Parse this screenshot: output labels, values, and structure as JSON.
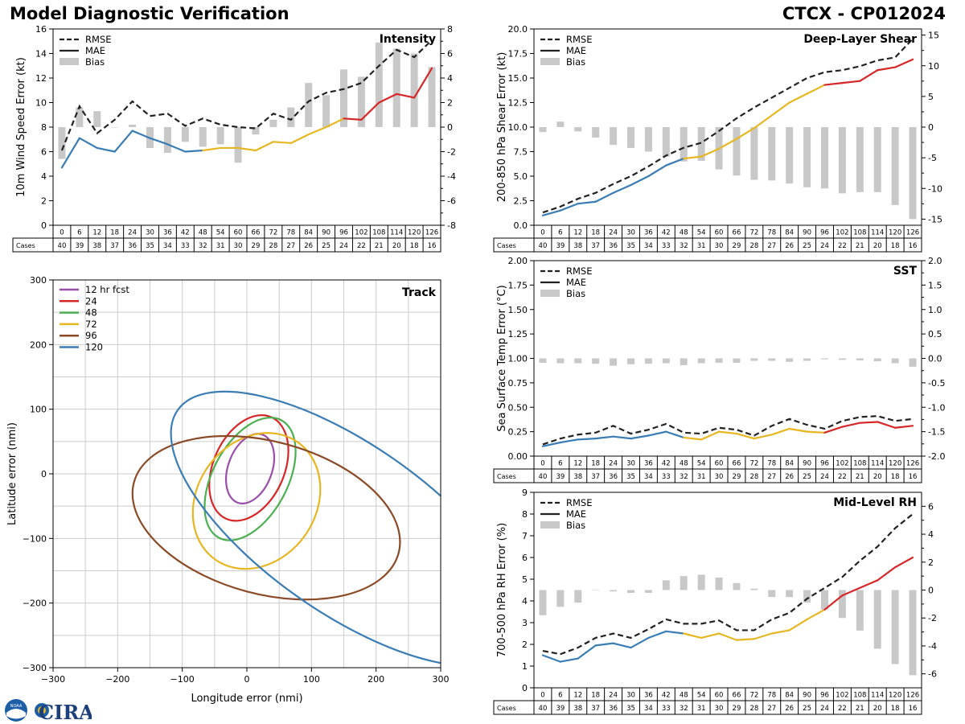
{
  "header": {
    "left_title": "Model Diagnostic Verification",
    "right_title": "CTCX - CP012024"
  },
  "logos": {
    "noaa": "NOAA",
    "cira": "CIRA"
  },
  "colors": {
    "blue": "#3a7db5",
    "yellow": "#e6b722",
    "red": "#d62728",
    "gray_bar": "#c8c8c8",
    "rmse": "#222222",
    "purple": "#9b4dab",
    "green": "#4caf50",
    "brown": "#8b4a26",
    "grid": "#cccccc"
  },
  "cases_label": "Cases",
  "chart_data": [
    {
      "id": "intensity",
      "type": "line",
      "title": "Intensity",
      "ylabel": "10m Wind Speed Error (kt)",
      "ylim": [
        0,
        16
      ],
      "yticks": [
        0,
        2,
        4,
        6,
        8,
        10,
        12,
        14,
        16
      ],
      "y2lim": [
        -8,
        8
      ],
      "y2ticks": [
        -8,
        -6,
        -4,
        -2,
        0,
        2,
        4,
        6,
        8
      ],
      "legend": [
        "RMSE",
        "MAE",
        "Bias"
      ],
      "hours": [
        0,
        6,
        12,
        18,
        24,
        30,
        36,
        42,
        48,
        54,
        60,
        66,
        72,
        78,
        84,
        90,
        96,
        102,
        108,
        114,
        120,
        126
      ],
      "cases": [
        40,
        39,
        38,
        37,
        36,
        35,
        34,
        33,
        32,
        31,
        30,
        29,
        28,
        27,
        26,
        25,
        24,
        22,
        21,
        20,
        18,
        16
      ],
      "rmse": [
        6.1,
        9.7,
        7.5,
        8.6,
        10.1,
        8.9,
        9.1,
        8.1,
        8.7,
        8.2,
        8.0,
        7.9,
        9.1,
        8.6,
        10.1,
        10.8,
        11.1,
        11.6,
        13.0,
        14.3,
        13.7,
        15.1
      ],
      "mae": [
        4.7,
        7.1,
        6.3,
        6.0,
        7.7,
        7.1,
        6.6,
        6.0,
        6.1,
        6.3,
        6.3,
        6.1,
        6.8,
        6.7,
        7.4,
        8.0,
        8.7,
        8.6,
        10.0,
        10.7,
        10.4,
        12.8
      ],
      "bias": [
        -2.6,
        1.6,
        1.3,
        0.0,
        0.2,
        -1.7,
        -2.1,
        -1.2,
        -1.6,
        -1.4,
        -2.9,
        -0.6,
        0.6,
        1.6,
        3.6,
        2.6,
        4.7,
        4.1,
        6.9,
        6.4,
        6.0,
        4.9
      ]
    },
    {
      "id": "shear",
      "type": "line",
      "title": "Deep-Layer Shear",
      "ylabel": "200-850 hPa Shear Error (kt)",
      "ylim": [
        0,
        20
      ],
      "yticks": [
        0.0,
        2.5,
        5.0,
        7.5,
        10.0,
        12.5,
        15.0,
        17.5,
        20.0
      ],
      "y2lim": [
        -16,
        16
      ],
      "y2ticks": [
        -15,
        -10,
        -5,
        0,
        5,
        10,
        15
      ],
      "legend": [
        "RMSE",
        "MAE",
        "Bias"
      ],
      "hours": [
        0,
        6,
        12,
        18,
        24,
        30,
        36,
        42,
        48,
        54,
        60,
        66,
        72,
        78,
        84,
        90,
        96,
        102,
        108,
        114,
        120,
        126
      ],
      "cases": [
        40,
        39,
        38,
        37,
        36,
        35,
        34,
        33,
        32,
        31,
        30,
        29,
        28,
        27,
        26,
        25,
        24,
        22,
        21,
        20,
        18,
        16
      ],
      "rmse": [
        1.3,
        1.9,
        2.7,
        3.3,
        4.2,
        5.0,
        6.0,
        7.1,
        7.9,
        8.4,
        9.6,
        10.9,
        12.0,
        13.0,
        14.0,
        15.0,
        15.6,
        15.8,
        16.2,
        16.8,
        17.1,
        19.0
      ],
      "mae": [
        1.0,
        1.5,
        2.2,
        2.4,
        3.3,
        4.1,
        5.0,
        6.1,
        6.8,
        7.0,
        7.8,
        8.8,
        9.9,
        11.2,
        12.5,
        13.4,
        14.3,
        14.5,
        14.7,
        15.8,
        16.1,
        16.9
      ],
      "bias": [
        -0.8,
        0.9,
        -0.7,
        -1.7,
        -2.9,
        -3.4,
        -4.0,
        -4.8,
        -5.6,
        -5.5,
        -6.9,
        -7.9,
        -8.6,
        -8.7,
        -9.2,
        -9.8,
        -10.0,
        -10.8,
        -10.6,
        -10.6,
        -12.7,
        -15.0
      ]
    },
    {
      "id": "sst",
      "type": "line",
      "title": "SST",
      "ylabel": "Sea Surface Temp Error (°C)",
      "ylim": [
        0,
        2
      ],
      "yticks": [
        0.0,
        0.25,
        0.5,
        0.75,
        1.0,
        1.25,
        1.5,
        1.75,
        2.0
      ],
      "y2lim": [
        -2,
        2
      ],
      "y2ticks": [
        -2.0,
        -1.5,
        -1.0,
        -0.5,
        0.0,
        0.5,
        1.0,
        1.5,
        2.0
      ],
      "legend": [
        "RMSE",
        "MAE",
        "Bias"
      ],
      "hours": [
        0,
        6,
        12,
        18,
        24,
        30,
        36,
        42,
        48,
        54,
        60,
        66,
        72,
        78,
        84,
        90,
        96,
        102,
        108,
        114,
        120,
        126
      ],
      "cases": [
        40,
        39,
        38,
        37,
        36,
        35,
        34,
        33,
        32,
        31,
        30,
        29,
        28,
        27,
        26,
        25,
        24,
        22,
        21,
        20,
        18,
        16
      ],
      "rmse": [
        0.12,
        0.18,
        0.22,
        0.24,
        0.31,
        0.23,
        0.27,
        0.33,
        0.24,
        0.23,
        0.29,
        0.27,
        0.21,
        0.31,
        0.38,
        0.32,
        0.28,
        0.36,
        0.4,
        0.41,
        0.36,
        0.38
      ],
      "mae": [
        0.1,
        0.14,
        0.17,
        0.18,
        0.2,
        0.18,
        0.21,
        0.25,
        0.19,
        0.17,
        0.25,
        0.23,
        0.18,
        0.22,
        0.28,
        0.25,
        0.24,
        0.3,
        0.34,
        0.35,
        0.29,
        0.31
      ],
      "bias": [
        -0.09,
        -0.1,
        -0.1,
        -0.11,
        -0.15,
        -0.12,
        -0.11,
        -0.1,
        -0.14,
        -0.1,
        -0.09,
        -0.09,
        -0.05,
        -0.05,
        -0.07,
        -0.05,
        -0.02,
        -0.03,
        -0.04,
        -0.06,
        -0.1,
        -0.17
      ]
    },
    {
      "id": "rh",
      "type": "line",
      "title": "Mid-Level RH",
      "ylabel": "700-500 hPa RH Error (%)",
      "ylim": [
        0,
        9
      ],
      "yticks": [
        0,
        1,
        2,
        3,
        4,
        5,
        6,
        7,
        8,
        9
      ],
      "y2lim": [
        -7,
        7
      ],
      "y2ticks": [
        -6,
        -4,
        -2,
        0,
        2,
        4,
        6
      ],
      "legend": [
        "RMSE",
        "MAE",
        "Bias"
      ],
      "hours": [
        0,
        6,
        12,
        18,
        24,
        30,
        36,
        42,
        48,
        54,
        60,
        66,
        72,
        78,
        84,
        90,
        96,
        102,
        108,
        114,
        120,
        126
      ],
      "cases": [
        40,
        39,
        38,
        37,
        36,
        35,
        34,
        33,
        32,
        31,
        30,
        29,
        28,
        27,
        26,
        25,
        24,
        22,
        21,
        20,
        18,
        16
      ],
      "rmse": [
        1.7,
        1.55,
        1.85,
        2.3,
        2.5,
        2.3,
        2.7,
        3.15,
        2.95,
        2.95,
        3.1,
        2.65,
        2.65,
        3.15,
        3.45,
        4.1,
        4.6,
        5.1,
        5.85,
        6.5,
        7.35,
        8.0
      ],
      "mae": [
        1.5,
        1.2,
        1.35,
        1.95,
        2.05,
        1.85,
        2.3,
        2.6,
        2.5,
        2.3,
        2.5,
        2.2,
        2.25,
        2.5,
        2.65,
        3.15,
        3.6,
        4.25,
        4.6,
        4.95,
        5.55,
        6.0
      ],
      "bias": [
        -1.8,
        -1.2,
        -0.9,
        0.0,
        -0.1,
        -0.2,
        -0.2,
        0.7,
        1.0,
        1.1,
        0.9,
        0.5,
        0.1,
        -0.5,
        -0.5,
        -0.9,
        -1.4,
        -2.0,
        -2.9,
        -4.2,
        -5.3,
        -6.1
      ]
    },
    {
      "id": "track",
      "type": "scatter",
      "title": "Track",
      "xlabel": "Longitude error (nmi)",
      "ylabel": "Latitude error (nmi)",
      "xlim": [
        -300,
        300
      ],
      "ylim": [
        -300,
        300
      ],
      "xticks": [
        -300,
        -200,
        -100,
        0,
        100,
        200,
        300
      ],
      "yticks": [
        -300,
        -200,
        -100,
        0,
        100,
        200,
        300
      ],
      "grid_step": 50,
      "legend": [
        "12 hr fcst",
        "24",
        "48",
        "72",
        "96",
        "120"
      ],
      "ellipses": [
        {
          "label": "12 hr fcst",
          "cx": 5,
          "cy": 8,
          "rx": 34,
          "ry": 56,
          "angle_deg": 20
        },
        {
          "label": "24",
          "cx": 3,
          "cy": 9,
          "rx": 55,
          "ry": 86,
          "angle_deg": 24
        },
        {
          "label": "48",
          "cx": 5,
          "cy": -8,
          "rx": 58,
          "ry": 103,
          "angle_deg": 28
        },
        {
          "label": "72",
          "cx": 15,
          "cy": -42,
          "rx": 92,
          "ry": 111,
          "angle_deg": 35
        },
        {
          "label": "96",
          "cx": 30,
          "cy": -68,
          "rx": 212,
          "ry": 118,
          "angle_deg": 15
        },
        {
          "label": "120",
          "cx": 155,
          "cy": -85,
          "rx": 320,
          "ry": 130,
          "angle_deg": 35
        }
      ]
    }
  ]
}
